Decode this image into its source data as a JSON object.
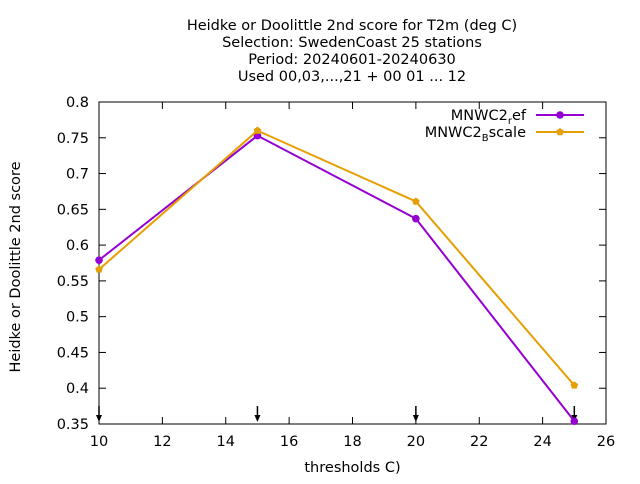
{
  "chart_data": {
    "type": "line",
    "title_lines": [
      "Heidke or Doolittle 2nd score  for T2m (deg C)",
      "Selection: SwedenCoast     25 stations",
      "Period: 20240601-20240630",
      "Used 00,03,...,21 + 00 01 ... 12"
    ],
    "xlabel": "thresholds C)",
    "ylabel": "Heidke or Doolittle 2nd score",
    "xlim": [
      10,
      26
    ],
    "ylim": [
      0.35,
      0.8
    ],
    "xticks": [
      10,
      12,
      14,
      16,
      18,
      20,
      22,
      24,
      26
    ],
    "yticks": [
      0.35,
      0.4,
      0.45,
      0.5,
      0.55,
      0.6,
      0.65,
      0.7,
      0.75,
      0.8
    ],
    "grid": false,
    "legend_position": "top-right",
    "series": [
      {
        "name": "MNWC2_ref",
        "legend_main": "MNWC2",
        "legend_sub": "r",
        "legend_rest": "ef",
        "color": "#9400d3",
        "x": [
          10,
          15,
          20,
          25
        ],
        "y": [
          0.579,
          0.753,
          0.637,
          0.354
        ]
      },
      {
        "name": "MNWC2_Bscale",
        "legend_main": "MNWC2",
        "legend_sub": "B",
        "legend_rest": "scale",
        "color": "#e69f00",
        "x": [
          10,
          15,
          20,
          25
        ],
        "y": [
          0.566,
          0.76,
          0.661,
          0.404
        ]
      }
    ],
    "arrow_markers_x": [
      10,
      15,
      20,
      25
    ]
  }
}
